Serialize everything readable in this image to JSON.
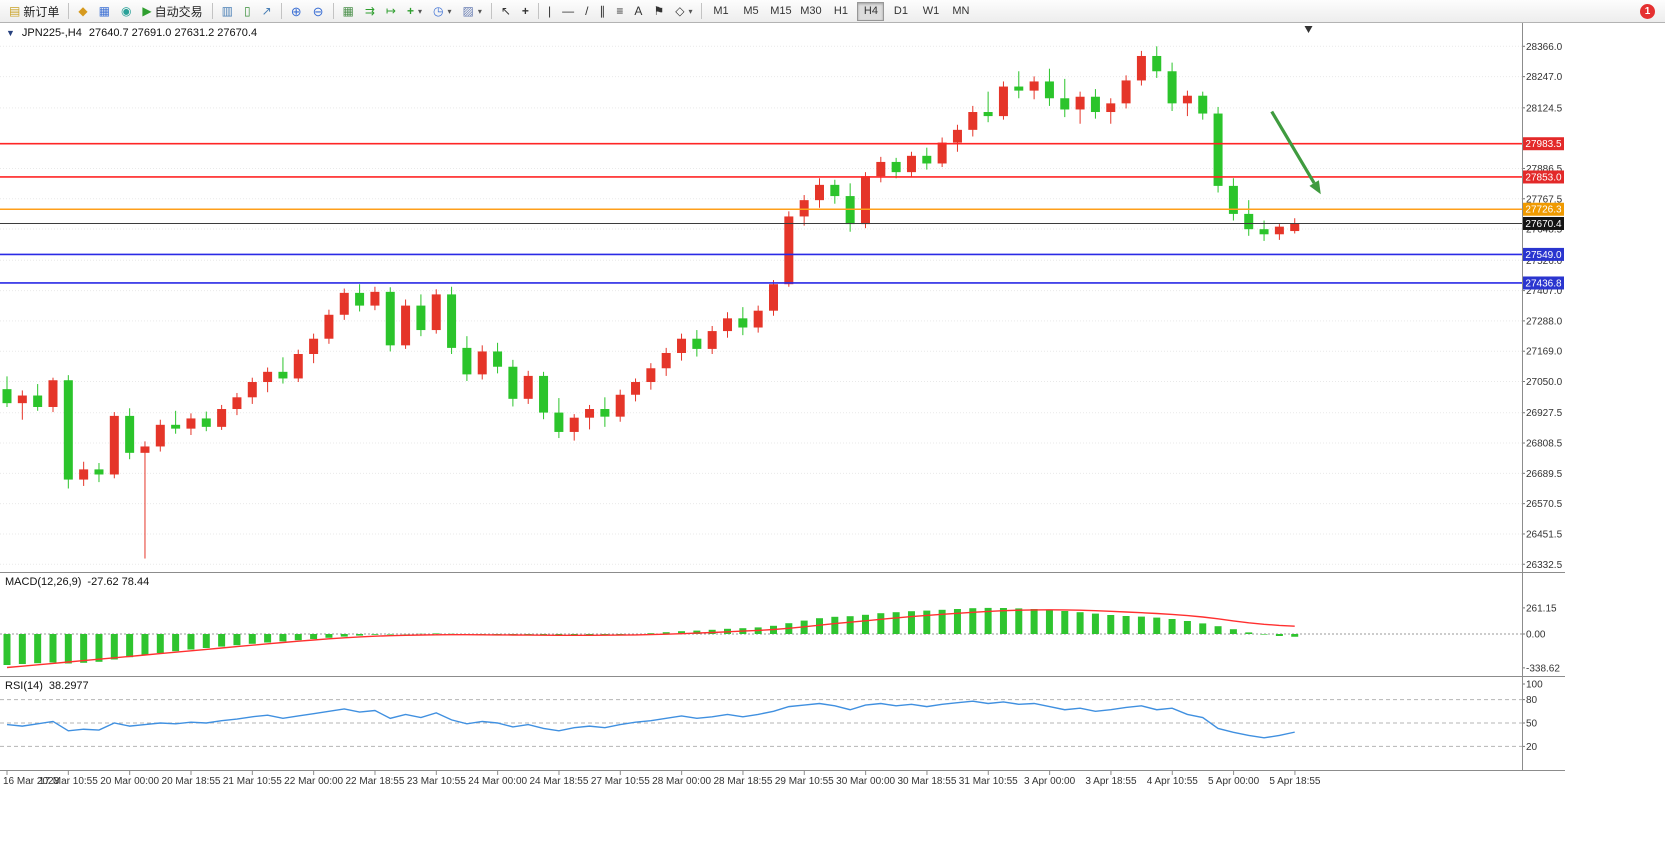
{
  "toolbar": {
    "new_order_label": "新订单",
    "auto_trading_label": "自动交易",
    "timeframes": [
      "M1",
      "M5",
      "M15",
      "M30",
      "H1",
      "H4",
      "D1",
      "W1",
      "MN"
    ],
    "active_timeframe": "H4",
    "notification_count": "1"
  },
  "icons": {
    "new_order": "▤",
    "editor": "◆",
    "market_watch": "▦",
    "terminal": "◉",
    "autotrading": "▶",
    "bar_chart": "▥",
    "candle_chart": "▯",
    "line_chart": "↗",
    "zoom_in": "⊕",
    "zoom_out": "⊖",
    "tile_windows": "▦",
    "auto_scroll": "⇉",
    "chart_shift": "↦",
    "indicators": "+",
    "periods": "◷",
    "templates": "▨",
    "cursor": "↖",
    "crosshair": "+",
    "vline": "|",
    "hline": "—",
    "trendline": "/",
    "channel": "∥",
    "fibonacci": "≡",
    "text_tool": "A",
    "label_tool": "⚑",
    "shapes": "◇",
    "caret": "▾",
    "title_marker": "▼"
  },
  "chart": {
    "title_symbol": "JPN225-,H4",
    "title_ohlc": "27640.7 27691.0 27631.2 27670.4",
    "macd_label": "MACD(12,26,9)",
    "macd_values": "-27.62 78.44",
    "rsi_label": "RSI(14)",
    "rsi_value": "38.2977"
  },
  "chart_data": {
    "type": "candlestick",
    "symbol": "JPN225-",
    "timeframe": "H4",
    "current_bar_ohlc": {
      "open": 27640.7,
      "high": 27691.0,
      "low": 27631.2,
      "close": 27670.4
    },
    "current_price": 27670.4,
    "ylim": [
      26310,
      28430
    ],
    "price_axis_labels": [
      28366.0,
      28247.0,
      28124.5,
      27886.5,
      27767.5,
      27648.5,
      27526.0,
      27407.0,
      27288.0,
      27169.0,
      27050.0,
      26927.5,
      26808.5,
      26689.5,
      26570.5,
      26451.5,
      26332.5
    ],
    "time_labels": [
      "16 Mar 2023",
      "17 Mar 10:55",
      "20 Mar 00:00",
      "20 Mar 18:55",
      "21 Mar 10:55",
      "22 Mar 00:00",
      "22 Mar 18:55",
      "23 Mar 10:55",
      "24 Mar 00:00",
      "24 Mar 18:55",
      "27 Mar 10:55",
      "28 Mar 00:00",
      "28 Mar 18:55",
      "29 Mar 10:55",
      "30 Mar 00:00",
      "30 Mar 18:55",
      "31 Mar 10:55",
      "3 Apr 00:00",
      "3 Apr 18:55",
      "4 Apr 10:55",
      "5 Apr 00:00",
      "5 Apr 18:55"
    ],
    "colors": {
      "up": "#e53529",
      "down": "#2bc42b",
      "grid": "#e9e9e9",
      "current_line": "#3c3c3c",
      "current_badge": "#141414",
      "macd_hist": "#2fc42f",
      "macd_signal": "#ff3030",
      "rsi_line": "#4090e0",
      "arrow": "#3f9b3f"
    },
    "levels": [
      {
        "price": 27983.5,
        "line_color": "#ff2626",
        "badge_color": "#e32929"
      },
      {
        "price": 27853.0,
        "line_color": "#ff2626",
        "badge_color": "#e32929"
      },
      {
        "price": 27726.3,
        "line_color": "#ff9f1a",
        "badge_color": "#f09a00"
      },
      {
        "price": 27549.0,
        "line_color": "#2a2ae6",
        "badge_color": "#2a35cf"
      },
      {
        "price": 27436.8,
        "line_color": "#2a2ae6",
        "badge_color": "#2a35cf"
      }
    ],
    "trend_arrow": {
      "from_bar": 82.5,
      "from_price": 28110,
      "to_bar": 85.7,
      "to_price": 27785
    },
    "shift_marker_bar": 84.9,
    "candles": [
      [
        27020,
        27070,
        26950,
        26965
      ],
      [
        26965,
        27015,
        26900,
        26995
      ],
      [
        26995,
        27040,
        26935,
        26950
      ],
      [
        26950,
        27065,
        26930,
        27055
      ],
      [
        27055,
        27075,
        26630,
        26665
      ],
      [
        26665,
        26735,
        26640,
        26705
      ],
      [
        26705,
        26730,
        26655,
        26685
      ],
      [
        26685,
        26930,
        26670,
        26915
      ],
      [
        26915,
        26945,
        26745,
        26770
      ],
      [
        26770,
        26815,
        26355,
        26795
      ],
      [
        26795,
        26900,
        26775,
        26880
      ],
      [
        26880,
        26935,
        26845,
        26865
      ],
      [
        26865,
        26925,
        26840,
        26905
      ],
      [
        26905,
        26932,
        26855,
        26872
      ],
      [
        26872,
        26958,
        26860,
        26942
      ],
      [
        26942,
        27005,
        26918,
        26988
      ],
      [
        26988,
        27065,
        26962,
        27048
      ],
      [
        27048,
        27105,
        27008,
        27088
      ],
      [
        27088,
        27145,
        27042,
        27062
      ],
      [
        27062,
        27175,
        27048,
        27158
      ],
      [
        27158,
        27238,
        27122,
        27218
      ],
      [
        27218,
        27332,
        27198,
        27312
      ],
      [
        27312,
        27415,
        27292,
        27398
      ],
      [
        27398,
        27432,
        27325,
        27348
      ],
      [
        27348,
        27422,
        27330,
        27402
      ],
      [
        27402,
        27420,
        27168,
        27192
      ],
      [
        27192,
        27372,
        27178,
        27348
      ],
      [
        27348,
        27392,
        27228,
        27252
      ],
      [
        27252,
        27412,
        27238,
        27392
      ],
      [
        27392,
        27422,
        27158,
        27182
      ],
      [
        27182,
        27228,
        27052,
        27078
      ],
      [
        27078,
        27192,
        27058,
        27168
      ],
      [
        27168,
        27202,
        27082,
        27108
      ],
      [
        27108,
        27135,
        26952,
        26982
      ],
      [
        26982,
        27092,
        26962,
        27072
      ],
      [
        27072,
        27088,
        26902,
        26928
      ],
      [
        26928,
        26985,
        26828,
        26852
      ],
      [
        26852,
        26922,
        26818,
        26908
      ],
      [
        26908,
        26958,
        26862,
        26942
      ],
      [
        26942,
        26988,
        26872,
        26912
      ],
      [
        26912,
        27018,
        26892,
        26998
      ],
      [
        26998,
        27062,
        26972,
        27048
      ],
      [
        27048,
        27122,
        27018,
        27102
      ],
      [
        27102,
        27182,
        27072,
        27162
      ],
      [
        27162,
        27238,
        27132,
        27218
      ],
      [
        27218,
        27252,
        27148,
        27178
      ],
      [
        27178,
        27268,
        27158,
        27248
      ],
      [
        27248,
        27322,
        27222,
        27298
      ],
      [
        27298,
        27342,
        27232,
        27262
      ],
      [
        27262,
        27348,
        27242,
        27328
      ],
      [
        27328,
        27448,
        27308,
        27432
      ],
      [
        27432,
        27718,
        27422,
        27698
      ],
      [
        27698,
        27782,
        27662,
        27762
      ],
      [
        27762,
        27848,
        27732,
        27822
      ],
      [
        27822,
        27842,
        27748,
        27778
      ],
      [
        27778,
        27828,
        27638,
        27668
      ],
      [
        27668,
        27872,
        27652,
        27856
      ],
      [
        27856,
        27932,
        27832,
        27912
      ],
      [
        27912,
        27928,
        27848,
        27872
      ],
      [
        27872,
        27952,
        27852,
        27936
      ],
      [
        27936,
        27968,
        27882,
        27906
      ],
      [
        27906,
        28008,
        27892,
        27988
      ],
      [
        27988,
        28058,
        27952,
        28038
      ],
      [
        28038,
        28132,
        28012,
        28108
      ],
      [
        28108,
        28188,
        28068,
        28092
      ],
      [
        28092,
        28228,
        28078,
        28208
      ],
      [
        28208,
        28268,
        28162,
        28192
      ],
      [
        28192,
        28248,
        28158,
        28228
      ],
      [
        28228,
        28278,
        28132,
        28162
      ],
      [
        28162,
        28238,
        28088,
        28118
      ],
      [
        28118,
        28188,
        28062,
        28168
      ],
      [
        28168,
        28198,
        28082,
        28108
      ],
      [
        28108,
        28162,
        28062,
        28142
      ],
      [
        28142,
        28252,
        28122,
        28232
      ],
      [
        28232,
        28348,
        28212,
        28328
      ],
      [
        28328,
        28366,
        28242,
        28268
      ],
      [
        28268,
        28302,
        28112,
        28142
      ],
      [
        28142,
        28192,
        28092,
        28172
      ],
      [
        28172,
        28188,
        28078,
        28102
      ],
      [
        28102,
        28128,
        27792,
        27818
      ],
      [
        27818,
        27848,
        27682,
        27708
      ],
      [
        27708,
        27762,
        27622,
        27648
      ],
      [
        27648,
        27682,
        27602,
        27628
      ],
      [
        27628,
        27668,
        27606,
        27658
      ],
      [
        27640.7,
        27691.0,
        27631.2,
        27670.4
      ]
    ],
    "macd": {
      "params": "12,26,9",
      "axis_labels": [
        261.15,
        0.0,
        -338.62
      ],
      "histogram": [
        -310,
        -300,
        -292,
        -285,
        -295,
        -288,
        -278,
        -255,
        -232,
        -210,
        -190,
        -172,
        -155,
        -140,
        -126,
        -112,
        -98,
        -85,
        -74,
        -62,
        -50,
        -38,
        -26,
        -16,
        -8,
        -6,
        -2,
        2,
        6,
        2,
        -4,
        -6,
        -8,
        -12,
        -10,
        -14,
        -18,
        -16,
        -12,
        -10,
        -6,
        0,
        8,
        18,
        28,
        34,
        42,
        52,
        58,
        66,
        82,
        108,
        134,
        158,
        172,
        178,
        192,
        208,
        218,
        228,
        234,
        242,
        250,
        258,
        261,
        260,
        256,
        250,
        242,
        230,
        218,
        204,
        190,
        180,
        174,
        164,
        150,
        130,
        106,
        78,
        48,
        16,
        -6,
        -20,
        -27.6
      ],
      "signal": [
        -335,
        -322,
        -308,
        -294,
        -280,
        -266,
        -252,
        -238,
        -224,
        -210,
        -196,
        -182,
        -168,
        -154,
        -140,
        -126,
        -112,
        -98,
        -85,
        -72,
        -60,
        -48,
        -38,
        -29,
        -22,
        -17,
        -13,
        -10,
        -8,
        -7,
        -7,
        -8,
        -9,
        -10,
        -11,
        -12,
        -13,
        -13,
        -13,
        -12,
        -11,
        -9,
        -6,
        -2,
        3,
        9,
        15,
        22,
        29,
        36,
        45,
        57,
        72,
        88,
        104,
        118,
        132,
        147,
        161,
        174,
        186,
        197,
        207,
        217,
        226,
        233,
        238,
        241,
        242,
        241,
        238,
        233,
        227,
        220,
        213,
        205,
        196,
        184,
        170,
        152,
        131,
        112,
        97,
        86,
        78.4
      ]
    },
    "rsi": {
      "period": 14,
      "axis_labels": [
        100,
        80,
        50,
        20
      ],
      "level_lines": [
        80,
        50,
        20
      ],
      "values": [
        48,
        46,
        49,
        52,
        40,
        42,
        41,
        50,
        46,
        48,
        50,
        49,
        51,
        50,
        53,
        55,
        58,
        60,
        56,
        59,
        62,
        65,
        68,
        64,
        66,
        56,
        61,
        57,
        63,
        54,
        49,
        52,
        50,
        45,
        48,
        43,
        40,
        44,
        46,
        44,
        48,
        51,
        53,
        56,
        59,
        56,
        58,
        61,
        58,
        61,
        65,
        71,
        73,
        75,
        72,
        67,
        73,
        75,
        72,
        74,
        71,
        74,
        76,
        78,
        75,
        77,
        74,
        75,
        71,
        67,
        69,
        65,
        67,
        70,
        72,
        67,
        69,
        61,
        57,
        43,
        38,
        34,
        31,
        34,
        38.3
      ]
    }
  }
}
